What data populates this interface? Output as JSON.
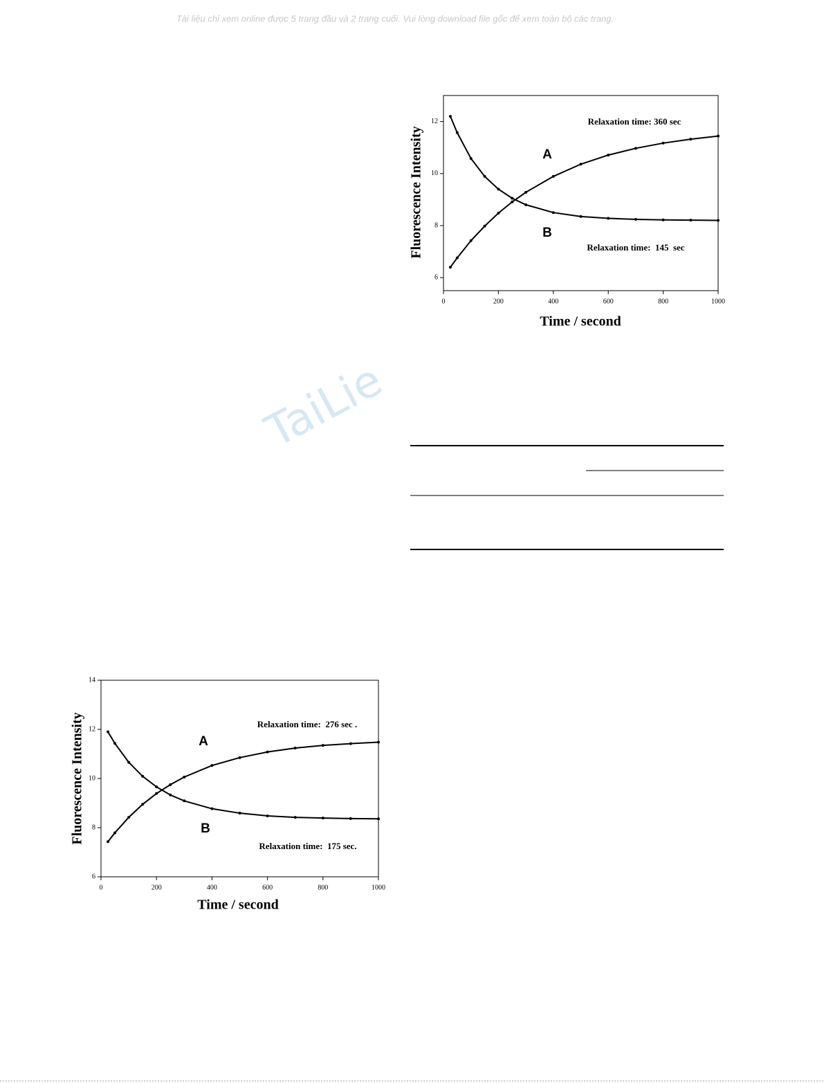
{
  "header": {
    "notice": "Tài liệu chỉ xem online được 5 trang đầu và 2 trang cuối. Vui lòng download file gốc để xem toàn bộ các trang."
  },
  "watermark": "TaiLie",
  "chart_data": [
    {
      "type": "line",
      "x_label": "Time / second",
      "y_label": "Fluorescence Intensity",
      "annotations": [
        "Relaxation time: 360 sec",
        "Relaxation time:  145  sec"
      ],
      "x": [
        25,
        50,
        100,
        150,
        200,
        250,
        300,
        400,
        500,
        600,
        700,
        800,
        900,
        1000
      ],
      "series": [
        {
          "name": "A",
          "color": "#000000",
          "values": [
            6.4,
            6.76,
            7.42,
            7.98,
            8.48,
            8.91,
            9.28,
            9.89,
            10.36,
            10.71,
            10.97,
            11.17,
            11.32,
            11.44
          ]
        },
        {
          "name": "B",
          "color": "#000000",
          "values": [
            12.2,
            11.57,
            10.58,
            9.89,
            9.4,
            9.05,
            8.8,
            8.5,
            8.35,
            8.28,
            8.24,
            8.22,
            8.21,
            8.2
          ]
        }
      ],
      "xlim": [
        0,
        1000
      ],
      "xticks": [
        0,
        200,
        400,
        600,
        800,
        1000
      ],
      "ylim": [
        5.5,
        13
      ],
      "yticks": [
        6,
        8,
        10,
        12
      ]
    },
    {
      "type": "line",
      "x_label": "Time / second",
      "y_label": "Fluorescence Intensity",
      "annotations": [
        "Relaxation time:  276 sec .",
        "Relaxation time:  175 sec."
      ],
      "x": [
        25,
        50,
        100,
        150,
        200,
        250,
        300,
        400,
        500,
        600,
        700,
        800,
        900,
        1000
      ],
      "series": [
        {
          "name": "A",
          "color": "#000000",
          "values": [
            7.43,
            7.79,
            8.42,
            8.95,
            9.39,
            9.75,
            10.06,
            10.53,
            10.85,
            11.08,
            11.24,
            11.35,
            11.42,
            11.48
          ]
        },
        {
          "name": "B",
          "color": "#000000",
          "values": [
            11.9,
            11.43,
            10.66,
            10.09,
            9.66,
            9.33,
            9.09,
            8.77,
            8.59,
            8.48,
            8.42,
            8.39,
            8.37,
            8.36
          ]
        }
      ],
      "xlim": [
        0,
        1000
      ],
      "xticks": [
        0,
        200,
        400,
        600,
        800,
        1000
      ],
      "ylim": [
        6,
        14
      ],
      "yticks": [
        6,
        8,
        10,
        12,
        14
      ]
    }
  ]
}
